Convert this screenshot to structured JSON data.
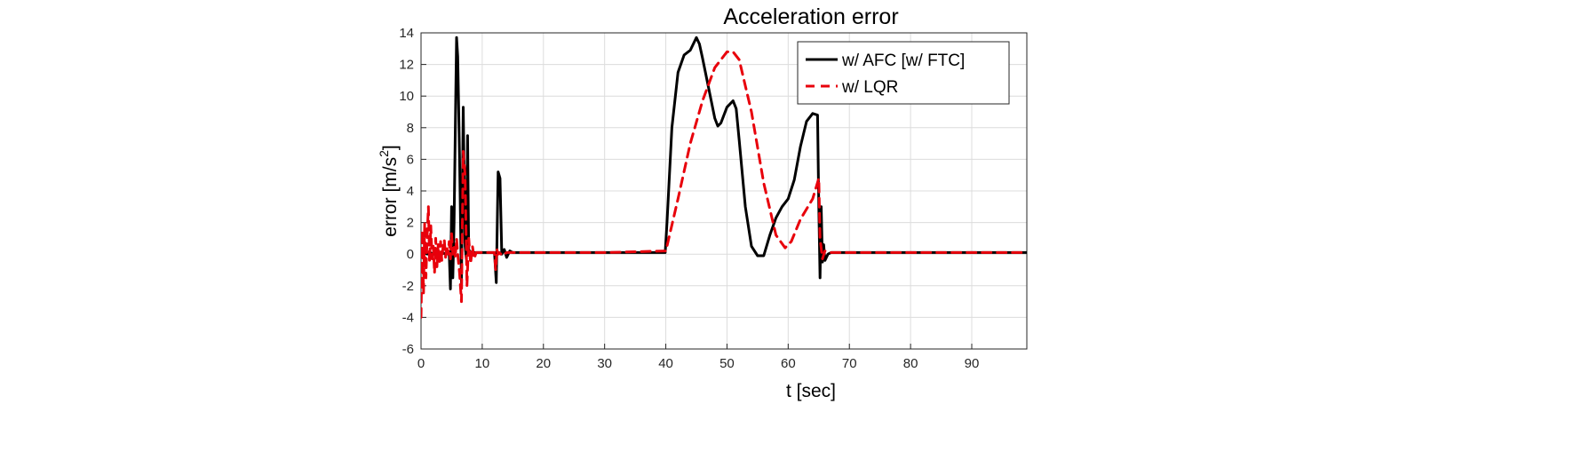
{
  "chart_data": {
    "type": "line",
    "title": "Acceleration error",
    "xlabel": "t [sec]",
    "ylabel_prefix": "error [m/s",
    "ylabel_sup": "2",
    "ylabel_suffix": "]",
    "xlim": [
      0,
      99
    ],
    "ylim": [
      -6,
      14
    ],
    "xticks": [
      0,
      10,
      20,
      30,
      40,
      50,
      60,
      70,
      80,
      90
    ],
    "yticks": [
      -6,
      -4,
      -2,
      0,
      2,
      4,
      6,
      8,
      10,
      12,
      14
    ],
    "grid": true,
    "legend_position": "top-right",
    "series": [
      {
        "name": "w/ AFC [w/ FTC]",
        "color": "#000000",
        "style": "solid",
        "x": [
          0,
          0.5,
          1,
          1.5,
          2,
          2.5,
          3,
          3.5,
          4,
          4.6,
          4.8,
          5.0,
          5.2,
          5.4,
          5.6,
          5.8,
          6.0,
          6.3,
          6.6,
          6.9,
          7.2,
          7.4,
          7.6,
          7.8,
          8.0,
          8.2,
          8.5,
          9.0,
          10,
          11,
          12,
          12.3,
          12.6,
          12.9,
          13.2,
          13.6,
          14.0,
          14.5,
          15,
          20,
          30,
          39.9,
          40.2,
          41,
          42,
          43,
          44,
          45,
          45.5,
          46,
          47,
          48,
          48.5,
          49,
          50,
          51,
          51.5,
          52,
          53,
          54,
          55,
          56,
          57,
          58,
          59,
          60,
          61,
          62,
          63,
          64,
          64.8,
          65.0,
          65.2,
          65.4,
          65.6,
          65.8,
          66.0,
          66.5,
          67,
          70,
          80,
          90,
          99
        ],
        "y": [
          0.2,
          0.1,
          0.0,
          0.1,
          0.0,
          0.1,
          0.0,
          0.1,
          0.0,
          0.1,
          -2.2,
          3.0,
          -1.5,
          2.0,
          8.0,
          13.7,
          12.5,
          6.0,
          -1.8,
          9.3,
          0.5,
          -0.3,
          7.5,
          0.0,
          0.2,
          0.0,
          0.1,
          0.1,
          0.1,
          0.1,
          0.1,
          -1.8,
          5.2,
          4.8,
          0.0,
          0.3,
          -0.2,
          0.2,
          0.1,
          0.1,
          0.1,
          0.1,
          2.0,
          8.0,
          11.5,
          12.6,
          12.9,
          13.7,
          13.3,
          12.4,
          10.5,
          8.6,
          8.1,
          8.3,
          9.3,
          9.7,
          9.2,
          7.2,
          3.0,
          0.5,
          -0.1,
          -0.1,
          1.2,
          2.3,
          3.0,
          3.5,
          4.7,
          6.8,
          8.4,
          8.9,
          8.8,
          3.0,
          -1.5,
          3.0,
          -0.5,
          0.6,
          -0.4,
          0.0,
          0.1,
          0.1,
          0.1,
          0.1,
          0.1
        ]
      },
      {
        "name": "w/ LQR",
        "color": "#e8000b",
        "style": "dashed",
        "x": [
          0,
          0.2,
          0.4,
          0.6,
          0.8,
          1.0,
          1.2,
          1.4,
          1.6,
          1.8,
          2.0,
          2.2,
          2.4,
          2.6,
          2.8,
          3.0,
          3.2,
          3.4,
          3.6,
          3.8,
          4.0,
          4.2,
          4.4,
          4.6,
          4.8,
          5.0,
          5.2,
          5.4,
          5.6,
          5.8,
          6.0,
          6.3,
          6.6,
          6.9,
          7.2,
          7.5,
          7.8,
          8.1,
          8.4,
          8.7,
          9.0,
          10,
          11,
          12,
          12.2,
          12.4,
          12.6,
          12.8,
          13.0,
          13.3,
          13.6,
          14,
          15,
          20,
          30,
          40,
          42,
          44,
          46,
          48,
          50,
          51,
          52,
          54,
          56,
          58,
          59.5,
          60.5,
          62,
          64,
          65.0,
          65.2,
          65.6,
          66,
          67,
          70,
          80,
          90,
          99
        ],
        "y": [
          -4.0,
          1.5,
          -2.5,
          2.0,
          -1.5,
          1.2,
          3.0,
          -0.5,
          1.8,
          -0.3,
          0.5,
          -1.2,
          1.0,
          -0.8,
          0.6,
          -0.6,
          0.8,
          -0.4,
          0.5,
          0.9,
          -0.2,
          0.5,
          0.0,
          0.8,
          -0.3,
          1.3,
          0.0,
          0.5,
          -0.2,
          1.0,
          0.0,
          -1.2,
          -3.0,
          6.5,
          5.0,
          -2.0,
          1.0,
          -0.6,
          0.5,
          -0.3,
          0.1,
          0.1,
          0.1,
          0.1,
          -1.0,
          0.3,
          0.0,
          0.1,
          0.0,
          0.1,
          0.0,
          0.1,
          0.1,
          0.1,
          0.1,
          0.2,
          3.5,
          7.0,
          9.7,
          11.8,
          12.8,
          12.8,
          12.3,
          9.0,
          4.5,
          1.2,
          0.4,
          0.8,
          2.2,
          3.5,
          4.8,
          1.0,
          -0.3,
          0.2,
          0.1,
          0.1,
          0.1,
          0.1,
          0.1
        ]
      }
    ]
  }
}
